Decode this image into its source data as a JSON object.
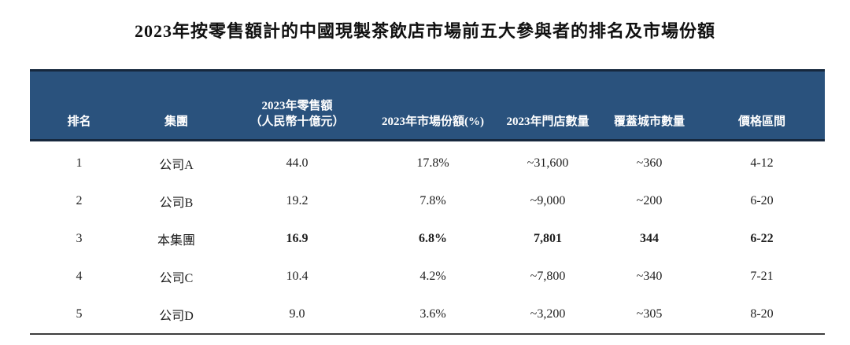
{
  "title": "2023年按零售額計的中國現製茶飲店市場前五大參與者的排名及市場份額",
  "colors": {
    "header_bg": "#2a527d",
    "header_border": "#16283e",
    "header_text": "#ffffff",
    "body_text": "#1f1f1f",
    "bottom_rule": "#3d3d3d"
  },
  "table": {
    "headers": {
      "rank": "排名",
      "group": "集團",
      "retail_line1": "2023年零售額",
      "retail_line2": "（人民幣十億元）",
      "market_share": "2023年市場份額(%)",
      "store_count": "2023年門店數量",
      "city_count": "覆蓋城市數量",
      "price_range": "價格區間"
    },
    "rows": [
      {
        "rank": "1",
        "group": "公司A",
        "retail": "44.0",
        "share": "17.8%",
        "stores": "~31,600",
        "cities": "~360",
        "price": "4-12",
        "highlight": false
      },
      {
        "rank": "2",
        "group": "公司B",
        "retail": "19.2",
        "share": "7.8%",
        "stores": "~9,000",
        "cities": "~200",
        "price": "6-20",
        "highlight": false
      },
      {
        "rank": "3",
        "group": "本集團",
        "retail": "16.9",
        "share": "6.8%",
        "stores": "7,801",
        "cities": "344",
        "price": "6-22",
        "highlight": true
      },
      {
        "rank": "4",
        "group": "公司C",
        "retail": "10.4",
        "share": "4.2%",
        "stores": "~7,800",
        "cities": "~340",
        "price": "7-21",
        "highlight": false
      },
      {
        "rank": "5",
        "group": "公司D",
        "retail": "9.0",
        "share": "3.6%",
        "stores": "~3,200",
        "cities": "~305",
        "price": "8-20",
        "highlight": false
      }
    ]
  }
}
